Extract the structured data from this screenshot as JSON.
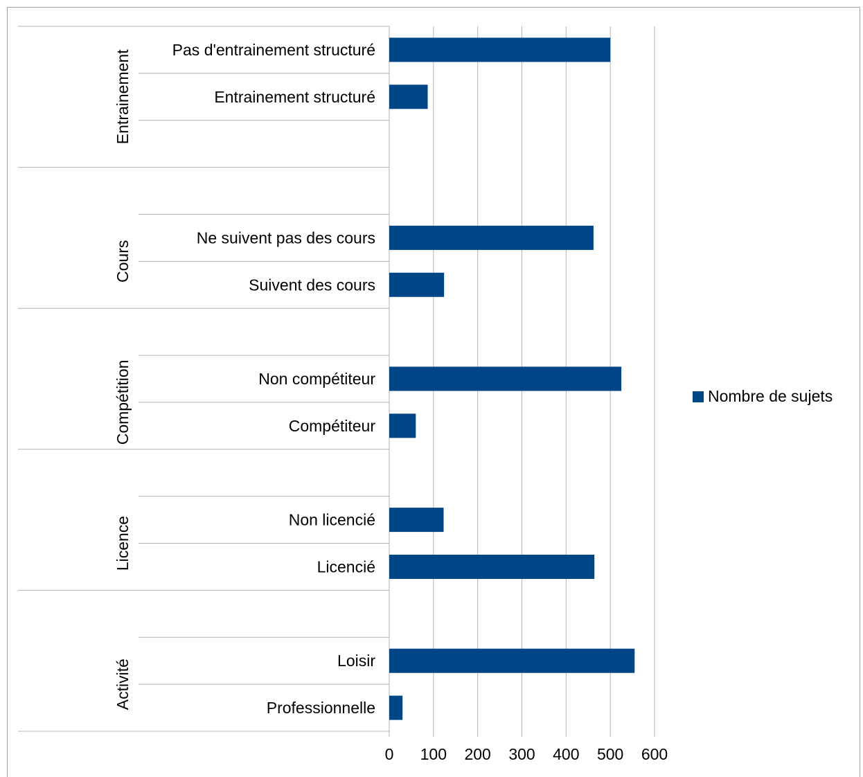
{
  "chart_data": {
    "type": "bar",
    "orientation": "horizontal",
    "groups": [
      {
        "name": "Entrainement",
        "categories": [
          "Pas d'entrainement structuré",
          "Entrainement structuré"
        ],
        "values": [
          500,
          87
        ]
      },
      {
        "name": "Cours",
        "categories": [
          "Ne suivent pas des cours",
          "Suivent des cours"
        ],
        "values": [
          462,
          124
        ]
      },
      {
        "name": "Compétition",
        "categories": [
          "Non compétiteur",
          "Compétiteur"
        ],
        "values": [
          525,
          60
        ]
      },
      {
        "name": "Licence",
        "categories": [
          "Non licencié",
          "Licencié"
        ],
        "values": [
          123,
          464
        ]
      },
      {
        "name": "Activité",
        "categories": [
          "Loisir",
          "Professionnelle"
        ],
        "values": [
          555,
          30
        ]
      }
    ],
    "series": [
      {
        "name": "Nombre de sujets",
        "color": "#004586"
      }
    ],
    "xlim": [
      0,
      600
    ],
    "xticks": [
      "0",
      "100",
      "200",
      "300",
      "400",
      "500",
      "600"
    ],
    "grid": true,
    "legend": "right",
    "title": "",
    "xlabel": "",
    "ylabel": ""
  }
}
